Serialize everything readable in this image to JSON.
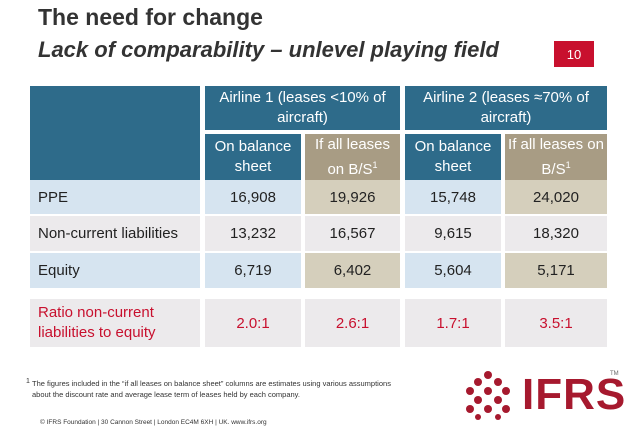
{
  "slide": {
    "title": "The need for change",
    "subtitle": "Lack of comparability – unlevel playing field",
    "number": "10"
  },
  "table": {
    "airline1_header": "Airline 1 (leases <10% of aircraft)",
    "airline2_header": "Airline 2 (leases ≈70% of aircraft)",
    "col_on_balance": "On balance sheet",
    "col_all_leases": "If all leases on B/S",
    "footnote_marker": "1",
    "rows": [
      {
        "label": "PPE",
        "values": [
          "16,908",
          "19,926",
          "15,748",
          "24,020"
        ]
      },
      {
        "label": "Non-current liabilities",
        "values": [
          "13,232",
          "16,567",
          "9,615",
          "18,320"
        ]
      },
      {
        "label": "Equity",
        "values": [
          "6,719",
          "6,402",
          "5,604",
          "5,171"
        ]
      }
    ],
    "ratio": {
      "label": "Ratio non-current liabilities to equity",
      "values": [
        "2.0:1",
        "2.6:1",
        "1.7:1",
        "3.5:1"
      ]
    }
  },
  "footnote": {
    "marker": "1",
    "text": "The figures included in the “if all leases on balance sheet” columns are estimates using various assumptions about the discount rate and average lease term of leases held by each company."
  },
  "footer": "© IFRS Foundation | 30 Cannon Street | London EC4M 6XH | UK. www.ifrs.org",
  "logo": {
    "text": "IFRS",
    "trademark": "TM"
  },
  "colors": {
    "header_blue": "#2e6b8a",
    "header_tan": "#a89c84",
    "accent_red": "#c8102e",
    "row_blue": "#d6e4f0",
    "row_tan": "#d5cfbc"
  }
}
